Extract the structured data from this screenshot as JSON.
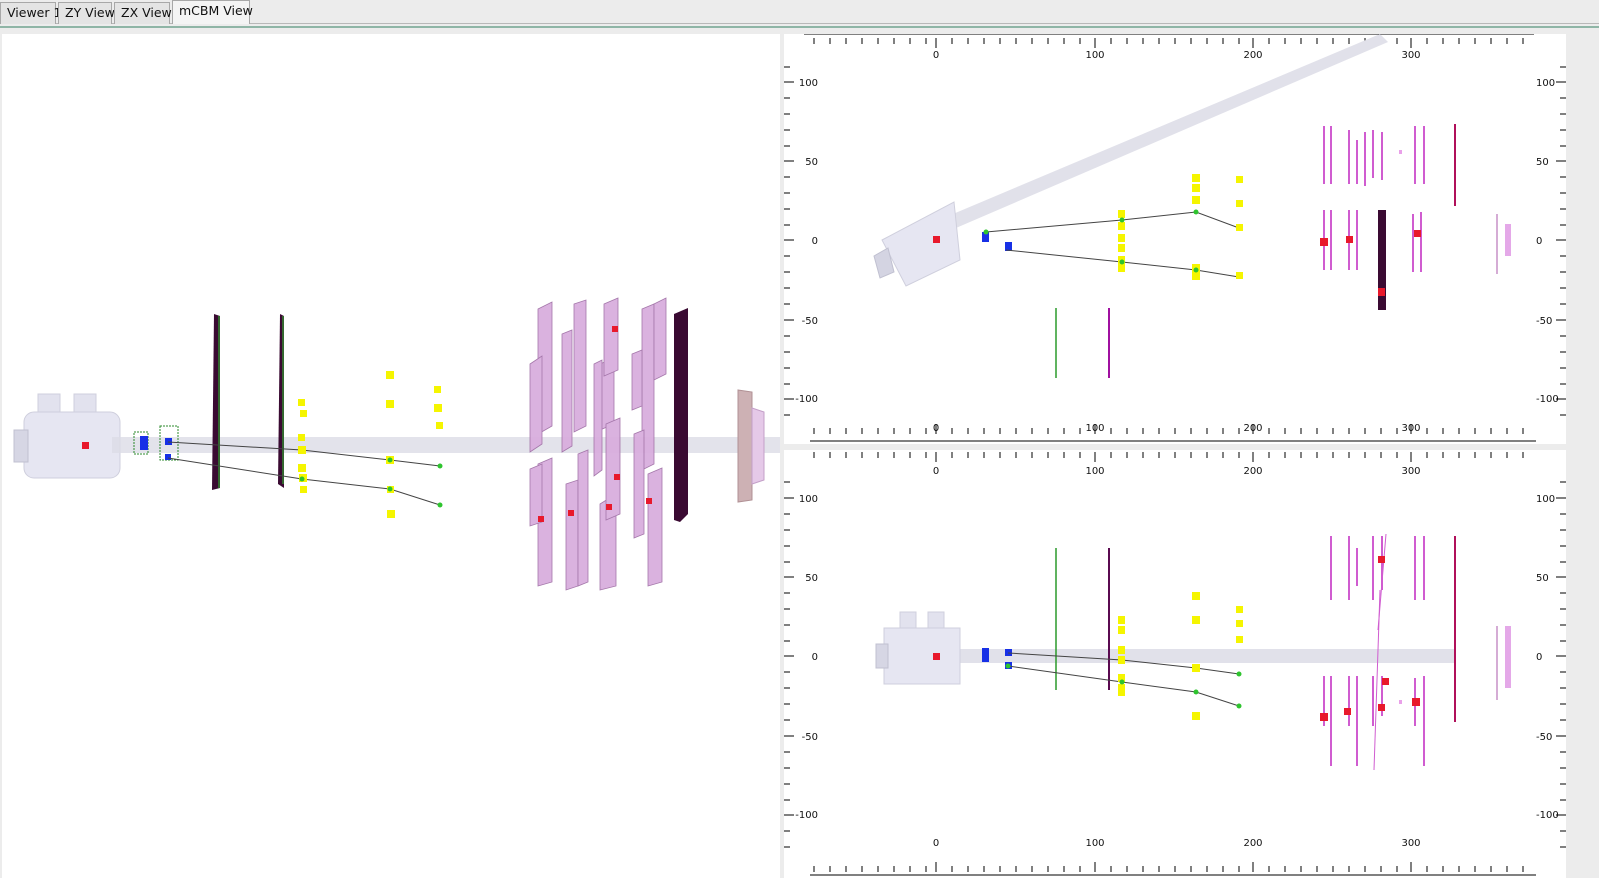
{
  "tabs": [
    {
      "label": "Viewer 1",
      "active": false
    },
    {
      "label": "ZY View",
      "active": false
    },
    {
      "label": "ZX View",
      "active": false
    },
    {
      "label": "mCBM View",
      "active": true
    }
  ],
  "views": {
    "top_right": {
      "x_ticks": [
        "0",
        "100",
        "200",
        "300"
      ],
      "y_ticks": [
        "100",
        "50",
        "0",
        "-50",
        "-100"
      ]
    },
    "bottom_right": {
      "x_ticks": [
        "0",
        "100",
        "200",
        "300"
      ],
      "y_ticks": [
        "100",
        "50",
        "0",
        "-50",
        "-100"
      ]
    }
  },
  "colors": {
    "hit": "#e8192c",
    "sts_hit": "#1730e6",
    "track_point": "#2ec42e",
    "yellow_pad": "#f5f500",
    "tof_module": "#d05cd0",
    "dark_module": "#3a0a32",
    "beampipe": "#d9d9e4"
  }
}
